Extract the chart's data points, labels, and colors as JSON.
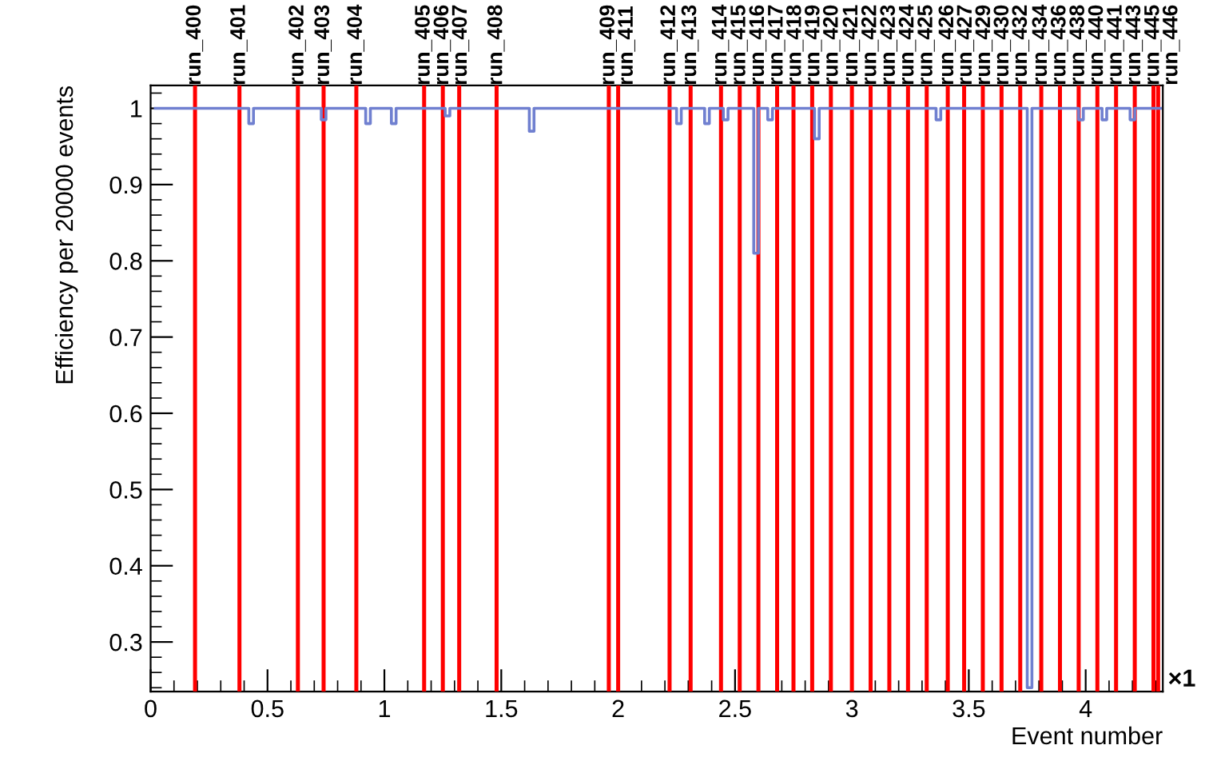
{
  "chart_data": {
    "type": "step",
    "xlabel": "Event number",
    "ylabel": "Efficiency per 20000 events",
    "annotations": [
      "×1"
    ],
    "series": [
      {
        "color": "#7080d0",
        "x": [
          0.02,
          0.42,
          0.44,
          0.73,
          0.75,
          0.92,
          0.94,
          1.03,
          1.05,
          1.26,
          1.28,
          1.62,
          1.64,
          2.25,
          2.27,
          2.37,
          2.39,
          2.45,
          2.47,
          2.58,
          2.6,
          2.64,
          2.66,
          2.84,
          2.86,
          3.36,
          3.38,
          3.75,
          3.77,
          3.97,
          3.99,
          4.07,
          4.09,
          4.19,
          4.21,
          4.32
        ],
        "values": [
          1,
          0.98,
          1,
          0.985,
          1,
          0.98,
          1,
          0.98,
          1,
          0.99,
          1,
          0.97,
          1,
          0.98,
          1,
          0.98,
          1,
          0.985,
          1,
          0.81,
          1,
          0.985,
          1,
          0.96,
          1,
          0.985,
          1,
          0.24,
          1,
          0.985,
          1,
          0.985,
          1,
          0.985,
          1,
          1
        ]
      }
    ],
    "ref_lines": [
      {
        "axis": "x",
        "value": 0.19,
        "label": "run_400",
        "color": "#ff0000"
      },
      {
        "axis": "x",
        "value": 0.38,
        "label": "run_401",
        "color": "#ff0000"
      },
      {
        "axis": "x",
        "value": 0.63,
        "label": "run_402",
        "color": "#ff0000"
      },
      {
        "axis": "x",
        "value": 0.74,
        "label": "run_403",
        "color": "#ff0000"
      },
      {
        "axis": "x",
        "value": 0.88,
        "label": "run_404",
        "color": "#ff0000"
      },
      {
        "axis": "x",
        "value": 1.17,
        "label": "run_405",
        "color": "#ff0000"
      },
      {
        "axis": "x",
        "value": 1.25,
        "label": "run_406",
        "color": "#ff0000"
      },
      {
        "axis": "x",
        "value": 1.32,
        "label": "run_407",
        "color": "#ff0000"
      },
      {
        "axis": "x",
        "value": 1.48,
        "label": "run_408",
        "color": "#ff0000"
      },
      {
        "axis": "x",
        "value": 1.96,
        "label": "run_409",
        "color": "#ff0000"
      },
      {
        "axis": "x",
        "value": 2.0,
        "label": "run_411",
        "color": "#ff0000"
      },
      {
        "axis": "x",
        "value": 2.22,
        "label": "run_412",
        "color": "#ff0000"
      },
      {
        "axis": "x",
        "value": 2.31,
        "label": "run_413",
        "color": "#ff0000"
      },
      {
        "axis": "x",
        "value": 2.44,
        "label": "run_414",
        "color": "#ff0000"
      },
      {
        "axis": "x",
        "value": 2.52,
        "label": "run_415",
        "color": "#ff0000"
      },
      {
        "axis": "x",
        "value": 2.6,
        "label": "run_416",
        "color": "#ff0000"
      },
      {
        "axis": "x",
        "value": 2.68,
        "label": "run_417",
        "color": "#ff0000"
      },
      {
        "axis": "x",
        "value": 2.75,
        "label": "run_418",
        "color": "#ff0000"
      },
      {
        "axis": "x",
        "value": 2.83,
        "label": "run_419",
        "color": "#ff0000"
      },
      {
        "axis": "x",
        "value": 2.91,
        "label": "run_420",
        "color": "#ff0000"
      },
      {
        "axis": "x",
        "value": 3.0,
        "label": "run_421",
        "color": "#ff0000"
      },
      {
        "axis": "x",
        "value": 3.08,
        "label": "run_422",
        "color": "#ff0000"
      },
      {
        "axis": "x",
        "value": 3.16,
        "label": "run_423",
        "color": "#ff0000"
      },
      {
        "axis": "x",
        "value": 3.24,
        "label": "run_424",
        "color": "#ff0000"
      },
      {
        "axis": "x",
        "value": 3.32,
        "label": "run_425",
        "color": "#ff0000"
      },
      {
        "axis": "x",
        "value": 3.41,
        "label": "run_426",
        "color": "#ff0000"
      },
      {
        "axis": "x",
        "value": 3.48,
        "label": "run_427",
        "color": "#ff0000"
      },
      {
        "axis": "x",
        "value": 3.56,
        "label": "run_429",
        "color": "#ff0000"
      },
      {
        "axis": "x",
        "value": 3.64,
        "label": "run_430",
        "color": "#ff0000"
      },
      {
        "axis": "x",
        "value": 3.72,
        "label": "run_432",
        "color": "#ff0000"
      },
      {
        "axis": "x",
        "value": 3.81,
        "label": "run_434",
        "color": "#ff0000"
      },
      {
        "axis": "x",
        "value": 3.89,
        "label": "run_436",
        "color": "#ff0000"
      },
      {
        "axis": "x",
        "value": 3.97,
        "label": "run_438",
        "color": "#ff0000"
      },
      {
        "axis": "x",
        "value": 4.05,
        "label": "run_440",
        "color": "#ff0000"
      },
      {
        "axis": "x",
        "value": 4.13,
        "label": "run_441",
        "color": "#ff0000"
      },
      {
        "axis": "x",
        "value": 4.21,
        "label": "run_443",
        "color": "#ff0000"
      },
      {
        "axis": "x",
        "value": 4.29,
        "label": "run_445",
        "color": "#ff0000"
      },
      {
        "axis": "x",
        "value": 4.31,
        "label": "run_446",
        "color": "#ff0000"
      }
    ],
    "xlim": [
      0,
      4.33
    ],
    "ylim": [
      0.235,
      1.03
    ],
    "xticks": [
      0,
      0.5,
      1,
      1.5,
      2,
      2.5,
      3,
      3.5,
      4
    ],
    "yticks": [
      0.3,
      0.4,
      0.5,
      0.6,
      0.7,
      0.8,
      0.9,
      1
    ],
    "grid": false,
    "marker": "none",
    "line_style": "solid"
  }
}
